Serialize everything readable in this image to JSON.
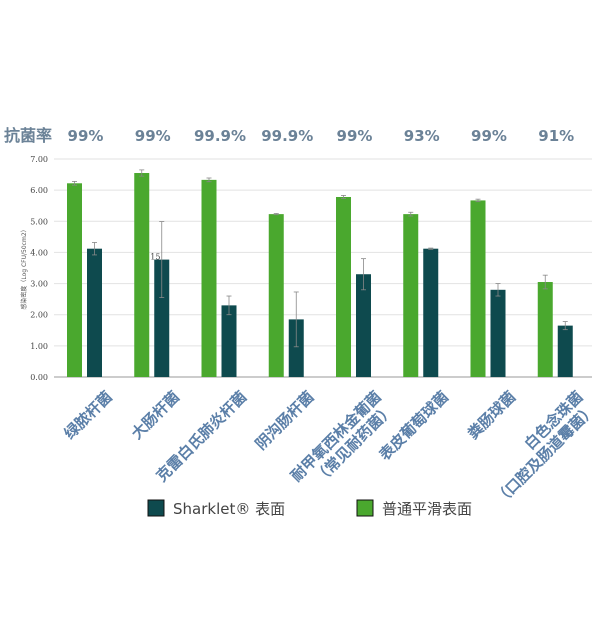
{
  "chart_data": {
    "type": "bar",
    "rate_title": "抗菌率",
    "rates": [
      "99%",
      "99%",
      "99.9%",
      "99.9%",
      "99%",
      "93%",
      "99%",
      "91%"
    ],
    "categories": [
      [
        "绿脓杆菌"
      ],
      [
        "大肠杆菌"
      ],
      [
        "克雷白氏肺炎杆菌"
      ],
      [
        "阴沟肠杆菌"
      ],
      [
        "耐甲氧西林金葡菌",
        "（常见耐药菌）"
      ],
      [
        "表皮葡萄球菌"
      ],
      [
        "粪肠球菌"
      ],
      [
        "白色念珠菌",
        "（口腔及肠道霉菌）"
      ]
    ],
    "ylabel": "感染密度（Log CFU/50cm2）",
    "ylim": [
      0,
      7
    ],
    "yticks": [
      "0.00",
      "1.00",
      "2.00",
      "3.00",
      "4.00",
      "5.00",
      "6.00",
      "7.00"
    ],
    "series": [
      {
        "name": "普通平滑表面",
        "color": "#4aa82e",
        "values": [
          6.22,
          6.55,
          6.33,
          5.23,
          5.78,
          5.23,
          5.67,
          3.05
        ],
        "errors": [
          0.06,
          0.1,
          0.06,
          0.02,
          0.05,
          0.06,
          0.04,
          0.22
        ]
      },
      {
        "name": "Sharklet® 表面",
        "color": "#0e4a4e",
        "values": [
          4.12,
          3.77,
          2.3,
          1.85,
          3.3,
          4.12,
          2.8,
          1.65
        ],
        "errors": [
          0.2,
          1.22,
          0.3,
          0.88,
          0.5,
          0.02,
          0.2,
          0.13
        ]
      }
    ],
    "annotation": "15",
    "grid": true
  },
  "legend": {
    "items": [
      {
        "label": "Sharklet® 表面",
        "color": "#0e4a4e"
      },
      {
        "label": "普通平滑表面",
        "color": "#4aa82e"
      }
    ]
  }
}
